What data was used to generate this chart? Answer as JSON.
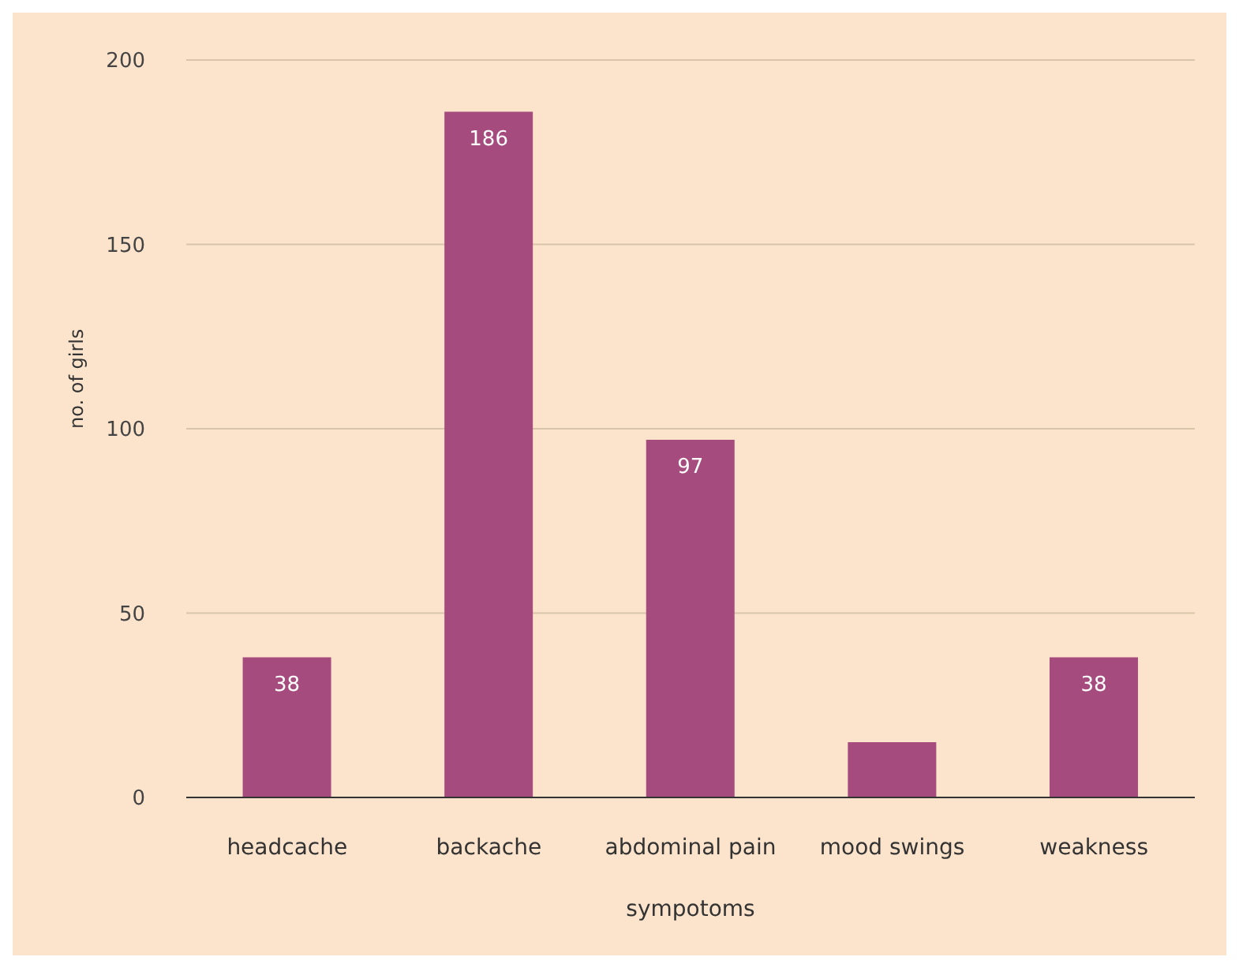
{
  "chart_data": {
    "type": "bar",
    "xlabel": "sympotoms",
    "ylabel": "no. of girls",
    "categories": [
      "headcache",
      "backache",
      "abdominal pain",
      "mood swings",
      "weakness"
    ],
    "values": [
      38,
      186,
      97,
      15,
      38
    ],
    "value_labels": [
      "38",
      "186",
      "97",
      null,
      "38"
    ],
    "color": "#a64b7d",
    "ylim": [
      0,
      200
    ],
    "yticks": [
      0,
      50,
      100,
      150,
      200
    ],
    "grid": "y"
  }
}
